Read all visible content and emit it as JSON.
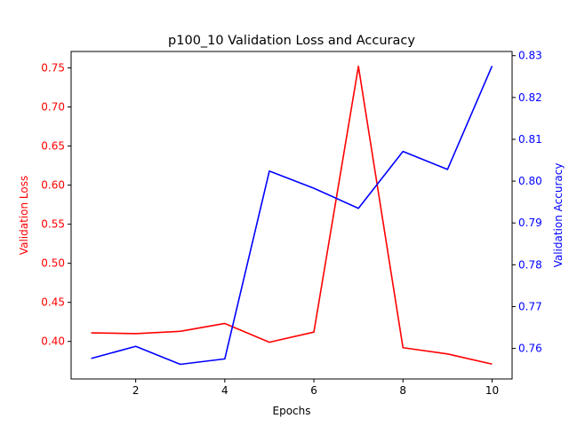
{
  "chart_data": {
    "type": "line",
    "title": "p100_10 Validation Loss and Accuracy",
    "xlabel": "Epochs",
    "x": [
      1,
      2,
      3,
      4,
      5,
      6,
      7,
      8,
      9,
      10
    ],
    "xlim": [
      0.55,
      10.45
    ],
    "x_ticks": [
      "2",
      "4",
      "6",
      "8",
      "10"
    ],
    "grid": false,
    "series": [
      {
        "axis": "left",
        "color": "#ff0000",
        "values": [
          0.411,
          0.41,
          0.413,
          0.423,
          0.399,
          0.412,
          0.752,
          0.392,
          0.384,
          0.371
        ]
      },
      {
        "axis": "right",
        "color": "#0000ff",
        "values": [
          0.7576,
          0.7605,
          0.7562,
          0.7575,
          0.8024,
          0.7983,
          0.7935,
          0.8071,
          0.8028,
          0.8275
        ]
      }
    ],
    "y_left": {
      "label": "Validation Loss",
      "color": "#ff0000",
      "ylim": [
        0.352,
        0.771
      ],
      "ticks": [
        "0.40",
        "0.45",
        "0.50",
        "0.55",
        "0.60",
        "0.65",
        "0.70",
        "0.75"
      ]
    },
    "y_right": {
      "label": "Validation Accuracy",
      "color": "#0000ff",
      "ylim": [
        0.7527,
        0.831
      ],
      "ticks": [
        "0.76",
        "0.77",
        "0.78",
        "0.79",
        "0.80",
        "0.81",
        "0.82",
        "0.83"
      ]
    }
  }
}
